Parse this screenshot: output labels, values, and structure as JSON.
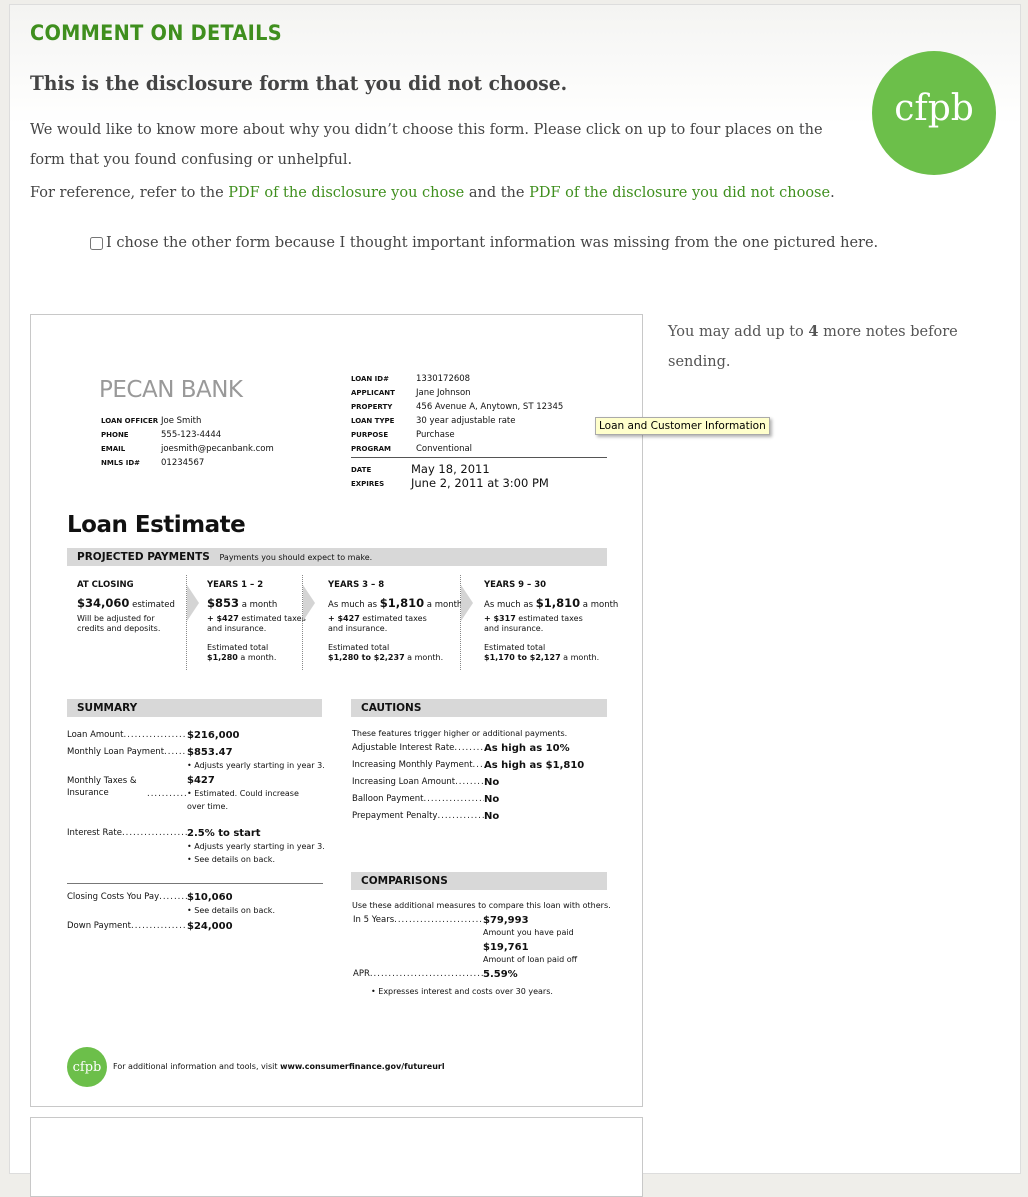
{
  "header": {
    "title": "COMMENT ON DETAILS",
    "subtitle": "This is the disclosure form that you did not choose.",
    "intro": "We would like to know more about why you didn’t choose this form. Please click on up to four places on the form that you found confusing or unhelpful.",
    "ref_prefix": "For reference, refer to the ",
    "ref_link1": "PDF of the disclosure you chose",
    "ref_mid": " and the ",
    "ref_link2": "PDF of the disclosure you did not choose",
    "ref_suffix": ".",
    "checkbox_label": "I chose the other form because I thought important information was missing from the one pictured here.",
    "checkbox_checked": false,
    "logo": "cfpb",
    "accent": "#3f8f1e",
    "logo_color": "#6cbf4a"
  },
  "notes": {
    "prefix": "You may add up to ",
    "count": "4",
    "suffix": " more notes before sending."
  },
  "tooltip": "Loan and Customer Information",
  "form": {
    "bank": "PECAN BANK",
    "officer": [
      [
        "LOAN OFFICER",
        "Joe Smith"
      ],
      [
        "PHONE",
        "555-123-4444"
      ],
      [
        "EMAIL",
        "joesmith@pecanbank.com"
      ],
      [
        "NMLS ID#",
        "01234567"
      ]
    ],
    "loan": [
      [
        "LOAN ID#",
        "1330172608"
      ],
      [
        "APPLICANT",
        "Jane Johnson"
      ],
      [
        "PROPERTY",
        "456 Avenue A, Anytown, ST 12345"
      ],
      [
        "LOAN TYPE",
        "30 year adjustable rate"
      ],
      [
        "PURPOSE",
        "Purchase"
      ],
      [
        "PROGRAM",
        "Conventional"
      ]
    ],
    "dates": [
      [
        "DATE",
        "May 18, 2011"
      ],
      [
        "EXPIRES",
        "June 2, 2011 at 3:00 PM"
      ]
    ],
    "title": "Loan Estimate",
    "projected": {
      "title": "PROJECTED PAYMENTS",
      "subtitle": "Payments you should expect to make.",
      "cols": [
        {
          "h": "AT CLOSING",
          "pre": "",
          "amt": "$34,060",
          "post": " estimated",
          "l2b": "",
          "l2": "Will be adjusted for credits and deposits.",
          "l3": "",
          "l3b": ""
        },
        {
          "h": "YEARS 1 – 2",
          "pre": "",
          "amt": "$853",
          "post": " a month",
          "l2b": "+ $427",
          "l2": " estimated taxes and insurance.",
          "l3": "Estimated total",
          "l3b": "$1,280",
          "l3s": " a month."
        },
        {
          "h": "YEARS 3 – 8",
          "pre": "As much as ",
          "amt": "$1,810",
          "post": " a month",
          "l2b": "+ $427",
          "l2": " estimated taxes and insurance.",
          "l3": "Estimated total",
          "l3b": "$1,280 to $2,237",
          "l3s": " a month."
        },
        {
          "h": "YEARS 9 – 30",
          "pre": "As much as ",
          "amt": "$1,810",
          "post": " a month",
          "l2b": "+ $317",
          "l2": " estimated taxes and insurance.",
          "l3": "Estimated total",
          "l3b": "$1,170 to $2,127",
          "l3s": " a month."
        }
      ]
    },
    "summary": {
      "title": "SUMMARY",
      "rows": [
        {
          "k": "Loan Amount",
          "v": "$216,000",
          "notes": []
        },
        {
          "k": "Monthly Loan Payment",
          "v": "$853.47",
          "notes": [
            "• Adjusts yearly starting in year 3."
          ]
        },
        {
          "k": "Monthly Taxes & Insurance",
          "v": "$427",
          "notes": [
            "• Estimated. Could increase",
            "over time."
          ]
        },
        {
          "k": "Interest Rate",
          "v": "2.5% to start",
          "notes": [
            "• Adjusts yearly starting in year 3.",
            "• See details on back."
          ]
        },
        {
          "k": "Closing Costs You Pay",
          "v": "$10,060",
          "notes": [
            "• See details on back."
          ]
        },
        {
          "k": "Down Payment",
          "v": "$24,000",
          "notes": []
        }
      ]
    },
    "cautions": {
      "title": "CAUTIONS",
      "intro": "These features trigger higher or additional payments.",
      "rows": [
        [
          "Adjustable Interest Rate",
          "As high as 10%"
        ],
        [
          "Increasing Monthly Payment",
          "As high as $1,810"
        ],
        [
          "Increasing Loan Amount",
          "No"
        ],
        [
          "Balloon Payment",
          "No"
        ],
        [
          "Prepayment Penalty",
          "No"
        ]
      ]
    },
    "comparisons": {
      "title": "COMPARISONS",
      "intro": "Use these additional measures to compare this loan with others.",
      "in5_label": "In 5 Years",
      "paid": "$79,993",
      "paid_label": "Amount you have paid",
      "paidoff": "$19,761",
      "paidoff_label": "Amount of loan paid off",
      "apr_label": "APR",
      "apr": "5.59%",
      "apr_note": "• Expresses interest and costs over 30 years."
    },
    "footer": {
      "logo": "cfpb",
      "text": "For additional information and tools, visit ",
      "url": "www.consumerfinance.gov/futureurl"
    }
  }
}
